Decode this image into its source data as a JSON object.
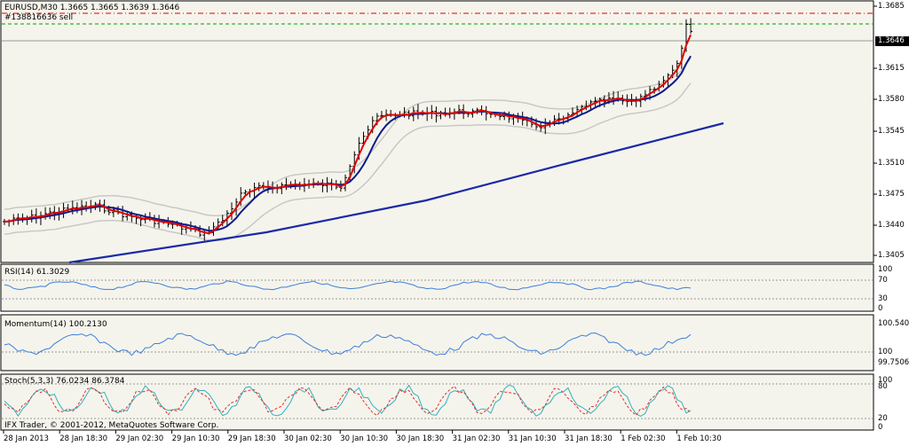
{
  "main": {
    "symbol_header": "EURUSD,M30  1.3665 1.3665 1.3639 1.3646",
    "order_label": "#138816636 sell",
    "current_price": "1.3646",
    "price_ticks": [
      "1.3685",
      "1.3615",
      "1.3580",
      "1.3545",
      "1.3510",
      "1.3475",
      "1.3440",
      "1.3405"
    ],
    "footer_text": "IFX Trader, © 2001-2012, MetaQuotes Software Corp."
  },
  "rsi": {
    "label": "RSI(14) 61.3029",
    "ticks": [
      "100",
      "70",
      "30",
      "0"
    ]
  },
  "momentum": {
    "label": "Momentum(14) 100.2130",
    "ticks": [
      "100.540",
      "100",
      "99.7506"
    ]
  },
  "stoch": {
    "label": "Stoch(5,3,3) 76.0234 86.3784",
    "ticks": [
      "100",
      "80",
      "20",
      "0"
    ]
  },
  "time_axis": [
    "28 Jan 2013",
    "28 Jan 18:30",
    "29 Jan 02:30",
    "29 Jan 10:30",
    "29 Jan 18:30",
    "30 Jan 02:30",
    "30 Jan 10:30",
    "30 Jan 18:30",
    "31 Jan 02:30",
    "31 Jan 10:30",
    "31 Jan 18:30",
    "1 Feb 02:30",
    "1 Feb 10:30"
  ],
  "colors": {
    "chart_bg": "#f5f4ec",
    "red_ma": "#e00000",
    "navy_ma": "#0a1a8c",
    "slow_ma": "#1a2aa8",
    "bands": "#c8c8c8",
    "indicator": "#3c7fdc",
    "stoch_signal": "#e03030",
    "stoch_main": "#30b0c0",
    "sl_line": "#e00000",
    "tp_line": "#00a000"
  }
}
